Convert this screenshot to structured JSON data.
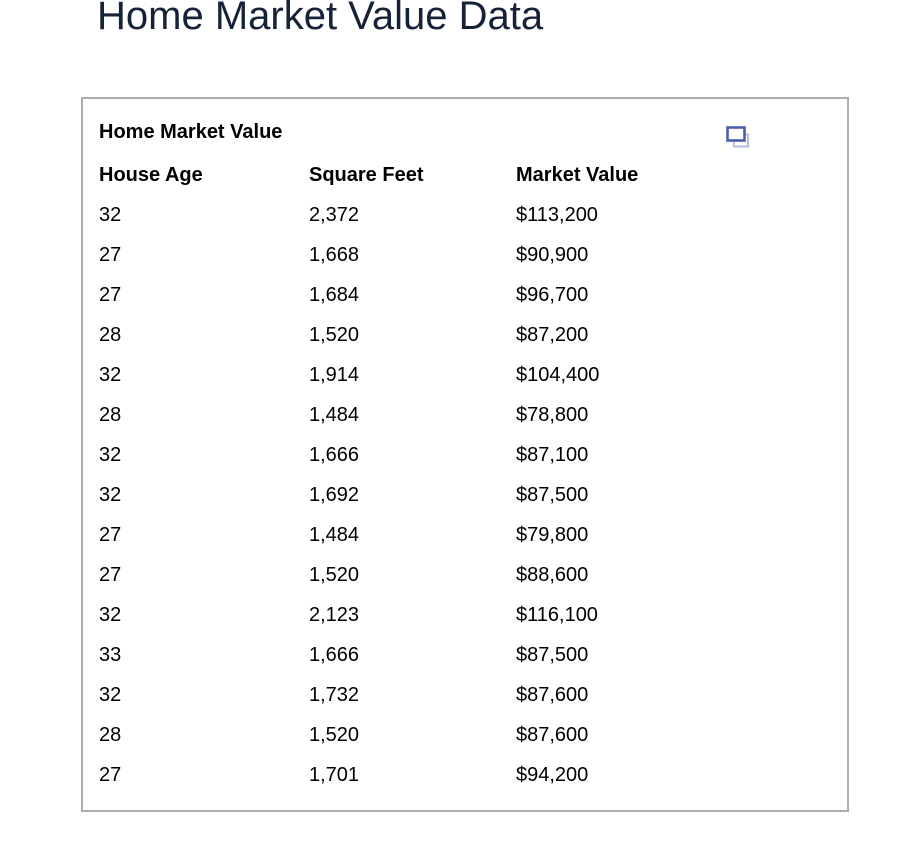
{
  "page": {
    "title": "Home Market Value Data"
  },
  "panel": {
    "title": "Home Market Value",
    "icon": "duplicate-icon",
    "table": {
      "columns": [
        "House Age",
        "Square Feet",
        "Market Value"
      ],
      "rows": [
        [
          "32",
          "2,372",
          "$113,200"
        ],
        [
          "27",
          "1,668",
          "$90,900"
        ],
        [
          "27",
          "1,684",
          "$96,700"
        ],
        [
          "28",
          "1,520",
          "$87,200"
        ],
        [
          "32",
          "1,914",
          "$104,400"
        ],
        [
          "28",
          "1,484",
          "$78,800"
        ],
        [
          "32",
          "1,666",
          "$87,100"
        ],
        [
          "32",
          "1,692",
          "$87,500"
        ],
        [
          "27",
          "1,484",
          "$79,800"
        ],
        [
          "27",
          "1,520",
          "$88,600"
        ],
        [
          "32",
          "2,123",
          "$116,100"
        ],
        [
          "33",
          "1,666",
          "$87,500"
        ],
        [
          "32",
          "1,732",
          "$87,600"
        ],
        [
          "28",
          "1,520",
          "$87,600"
        ],
        [
          "27",
          "1,701",
          "$94,200"
        ]
      ]
    }
  },
  "colors": {
    "page_title": "#152238",
    "panel_border": "#adadad",
    "icon_front_stroke": "#4d5ca6",
    "icon_back_stroke": "#b8bee0"
  }
}
